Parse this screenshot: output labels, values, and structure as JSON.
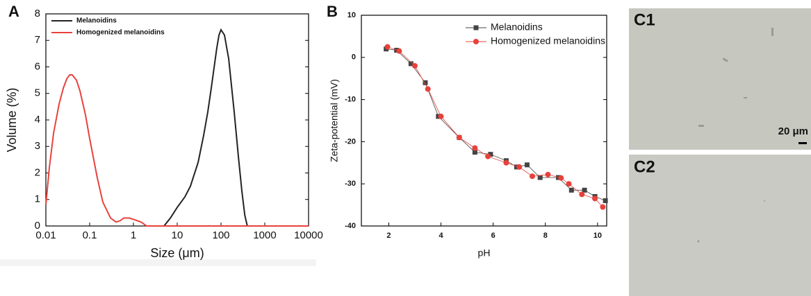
{
  "chart_data": [
    {
      "type": "line",
      "panel": "A",
      "xlabel": "Size (μm)",
      "ylabel": "Volume (%)",
      "xscale": "log",
      "xlim": [
        0.01,
        10000
      ],
      "xticks": [
        0.01,
        0.1,
        1,
        10,
        100,
        1000,
        10000
      ],
      "ylim": [
        0,
        8
      ],
      "yticks": [
        0,
        1,
        2,
        3,
        4,
        5,
        6,
        7,
        8
      ],
      "legend": "upper left",
      "series": [
        {
          "name": "Melanoidins",
          "color": "#222222",
          "x": [
            5,
            7,
            10,
            15,
            20,
            30,
            40,
            50,
            60,
            70,
            80,
            90,
            100,
            120,
            150,
            200,
            250,
            300,
            350,
            400
          ],
          "values": [
            0,
            0.3,
            0.7,
            1.1,
            1.5,
            2.4,
            3.4,
            4.3,
            5.2,
            6.0,
            6.7,
            7.2,
            7.4,
            7.2,
            6.3,
            4.3,
            2.6,
            1.3,
            0.4,
            0
          ]
        },
        {
          "name": "Homogenized melanoidins",
          "color": "#e8413b",
          "x": [
            0.01,
            0.012,
            0.015,
            0.02,
            0.025,
            0.03,
            0.035,
            0.04,
            0.05,
            0.06,
            0.08,
            0.1,
            0.15,
            0.2,
            0.3,
            0.4,
            0.5,
            0.6,
            0.8,
            1,
            1.5,
            2,
            10,
            100,
            10000
          ],
          "values": [
            0.8,
            2.2,
            3.5,
            4.6,
            5.2,
            5.55,
            5.7,
            5.7,
            5.5,
            5.1,
            4.2,
            3.3,
            1.8,
            0.9,
            0.3,
            0.15,
            0.2,
            0.3,
            0.3,
            0.25,
            0.15,
            0,
            0,
            0,
            0
          ]
        }
      ]
    },
    {
      "type": "line",
      "panel": "B",
      "xlabel": "pH",
      "ylabel": "Zeta-potential (mV)",
      "xlim": [
        0.95,
        10.35
      ],
      "xticks": [
        2,
        4,
        6,
        8,
        10
      ],
      "ylim": [
        -40,
        10
      ],
      "yticks": [
        -40,
        -30,
        -20,
        -10,
        0,
        10
      ],
      "legend": "upper right",
      "series": [
        {
          "name": "Melanoidins",
          "color": "#444444",
          "marker": "square",
          "x": [
            1.9,
            2.3,
            2.85,
            3.4,
            3.9,
            4.7,
            5.3,
            5.9,
            6.5,
            6.9,
            7.3,
            7.8,
            8.5,
            9.0,
            9.5,
            9.9,
            10.3
          ],
          "values": [
            2,
            1.7,
            -1.5,
            -6,
            -14,
            -19,
            -22.5,
            -23,
            -24.5,
            -26,
            -25.5,
            -28.5,
            -28.5,
            -31.5,
            -31.5,
            -33,
            -34
          ]
        },
        {
          "name": "Homogenized melanoidins",
          "color": "#e8413b",
          "marker": "circle",
          "x": [
            1.95,
            2.4,
            3.0,
            3.5,
            4.0,
            4.7,
            5.3,
            5.8,
            6.5,
            7.0,
            7.5,
            8.1,
            8.6,
            8.9,
            9.4,
            9.9,
            10.2
          ],
          "values": [
            2.5,
            1.5,
            -2,
            -7.5,
            -14,
            -19,
            -21.5,
            -23.5,
            -25,
            -26,
            -28.2,
            -27.8,
            -28.6,
            -30,
            -32.5,
            -33.5,
            -35.5
          ]
        }
      ]
    }
  ],
  "images": [
    {
      "label": "C1",
      "scale_bar": "20 μm"
    },
    {
      "label": "C2"
    }
  ]
}
